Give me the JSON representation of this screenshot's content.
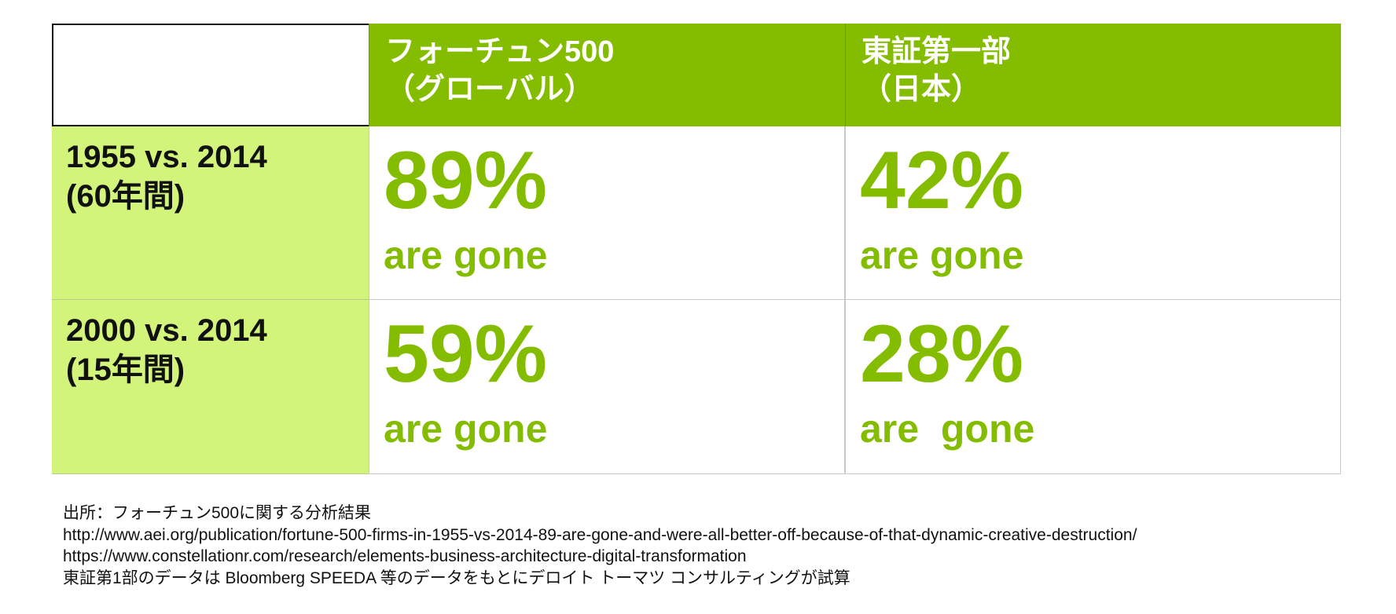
{
  "table": {
    "corner": "",
    "columns": [
      {
        "line1": "フォーチュン500",
        "line2": "（グローバル）"
      },
      {
        "line1": "東証第一部",
        "line2": "（日本）"
      }
    ],
    "rows": [
      {
        "label1": "1955 vs. 2014",
        "label2": "(60年間)",
        "cells": [
          {
            "value": "89%",
            "caption": "are gone"
          },
          {
            "value": "42%",
            "caption": "are gone"
          }
        ]
      },
      {
        "label1": "2000 vs. 2014",
        "label2": "(15年間)",
        "cells": [
          {
            "value": "59%",
            "caption": "are gone"
          },
          {
            "value": "28%",
            "caption": "are  gone"
          }
        ]
      }
    ]
  },
  "source": {
    "lines": [
      "出所：フォーチュン500に関する分析結果",
      "http://www.aei.org/publication/fortune-500-firms-in-1955-vs-2014-89-are-gone-and-were-all-better-off-because-of-that-dynamic-creative-destruction/",
      "https://www.constellationr.com/research/elements-business-architecture-digital-transformation",
      "東証第1部のデータは Bloomberg SPEEDA 等のデータをもとにデロイト トーマツ コンサルティングが試算"
    ]
  },
  "colors": {
    "accent_green": "#84bd00",
    "row_header_green": "#d3f47a",
    "text": "#111111"
  }
}
